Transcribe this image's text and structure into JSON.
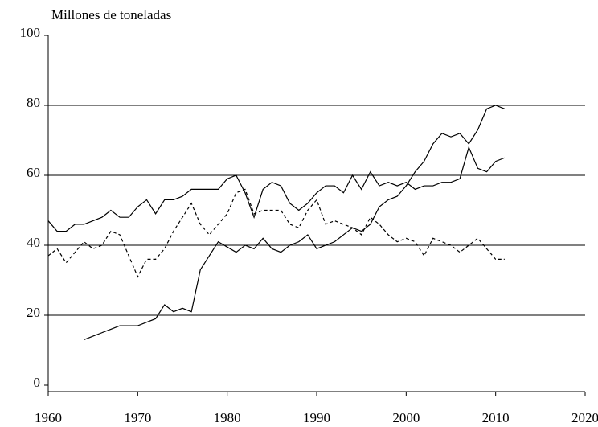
{
  "chart_data": {
    "type": "line",
    "y_label": "Millones de toneladas",
    "x": [
      1960,
      1961,
      1962,
      1963,
      1964,
      1965,
      1966,
      1967,
      1968,
      1969,
      1970,
      1971,
      1972,
      1973,
      1974,
      1975,
      1976,
      1977,
      1978,
      1979,
      1980,
      1981,
      1982,
      1983,
      1984,
      1985,
      1986,
      1987,
      1988,
      1989,
      1990,
      1991,
      1992,
      1993,
      1994,
      1995,
      1996,
      1997,
      1998,
      1999,
      2000,
      2001,
      2002,
      2003,
      2004,
      2005,
      2006,
      2007,
      2008,
      2009,
      2010,
      2011
    ],
    "series": [
      {
        "color": "#000000",
        "dash": false,
        "values": [
          47,
          44,
          44,
          46,
          46,
          47,
          48,
          50,
          48,
          48,
          51,
          53,
          49,
          53,
          53,
          54,
          56,
          56,
          56,
          56,
          59,
          60,
          55,
          48,
          56,
          58,
          57,
          52,
          50,
          52,
          55,
          57,
          57,
          55,
          60,
          56,
          61,
          57,
          58,
          57,
          58,
          56,
          57,
          57,
          58,
          58,
          59,
          68,
          62,
          61,
          64,
          65
        ]
      },
      {
        "color": "#000000",
        "dash": false,
        "values": [
          null,
          null,
          null,
          null,
          13,
          14,
          15,
          16,
          17,
          17,
          17,
          18,
          19,
          23,
          21,
          22,
          21,
          33,
          37,
          41,
          39.5,
          38,
          40,
          39,
          42,
          39,
          38,
          40,
          41,
          43,
          39,
          40,
          41,
          43,
          45,
          44,
          46,
          51,
          53,
          54,
          57,
          61,
          64,
          69,
          72,
          71,
          72,
          69,
          73,
          79,
          80,
          79
        ]
      },
      {
        "color": "#000000",
        "dash": true,
        "values": [
          37,
          39,
          35,
          38,
          41,
          39,
          40,
          44,
          43,
          37,
          31,
          36,
          36,
          39,
          44,
          48,
          52,
          46,
          43,
          46,
          49,
          55,
          56,
          49,
          50,
          50,
          50,
          46,
          45,
          50,
          53,
          46,
          47,
          46,
          45,
          43,
          48,
          46,
          43,
          41,
          42,
          41,
          37,
          42,
          41,
          40,
          38,
          40,
          42,
          39,
          36,
          36
        ]
      }
    ],
    "xlim": [
      1960,
      2020
    ],
    "xticks": [
      1960,
      1970,
      1980,
      1990,
      2000,
      2010,
      2020
    ],
    "ylim": [
      0,
      100
    ],
    "yticks": [
      0,
      20,
      40,
      60,
      80,
      100
    ],
    "grid": true
  }
}
